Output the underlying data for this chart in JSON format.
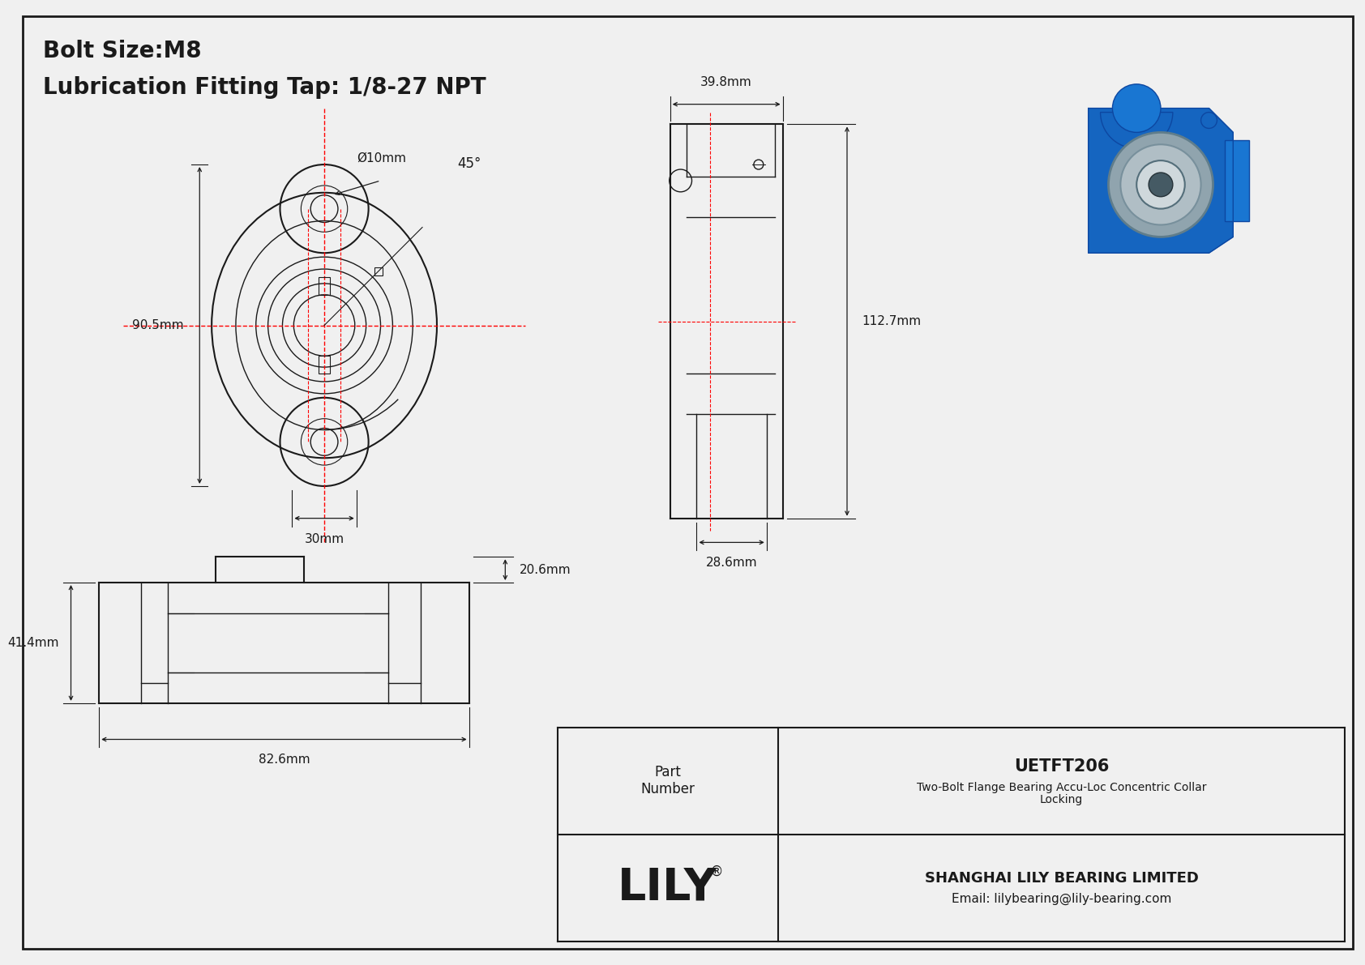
{
  "bg_color": "#f0f0f0",
  "line_color": "#1a1a1a",
  "red_line_color": "#ff0000",
  "title_line1": "Bolt Size:M8",
  "title_line2": "Lubrication Fitting Tap: 1/8-27 NPT",
  "title_fontsize": 20,
  "dim_fontsize": 11,
  "company_name": "SHANGHAI LILY BEARING LIMITED",
  "company_email": "Email: lilybearing@lily-bearing.com",
  "part_number": "UETFT206",
  "part_desc_line1": "Two-Bolt Flange Bearing Accu-Loc Concentric Collar",
  "part_desc_line2": "Locking",
  "lily_text": "LILY",
  "registered_mark": "®",
  "dims": {
    "bolt_hole_dia": "Ø10mm",
    "angle": "45°",
    "height_front": "90.5mm",
    "width_bottom_front": "30mm",
    "width_side_top": "39.8mm",
    "height_side": "112.7mm",
    "width_side_bottom": "28.6mm",
    "height_bottom": "41.4mm",
    "width_bottom": "82.6mm",
    "depth_bottom": "20.6mm"
  }
}
